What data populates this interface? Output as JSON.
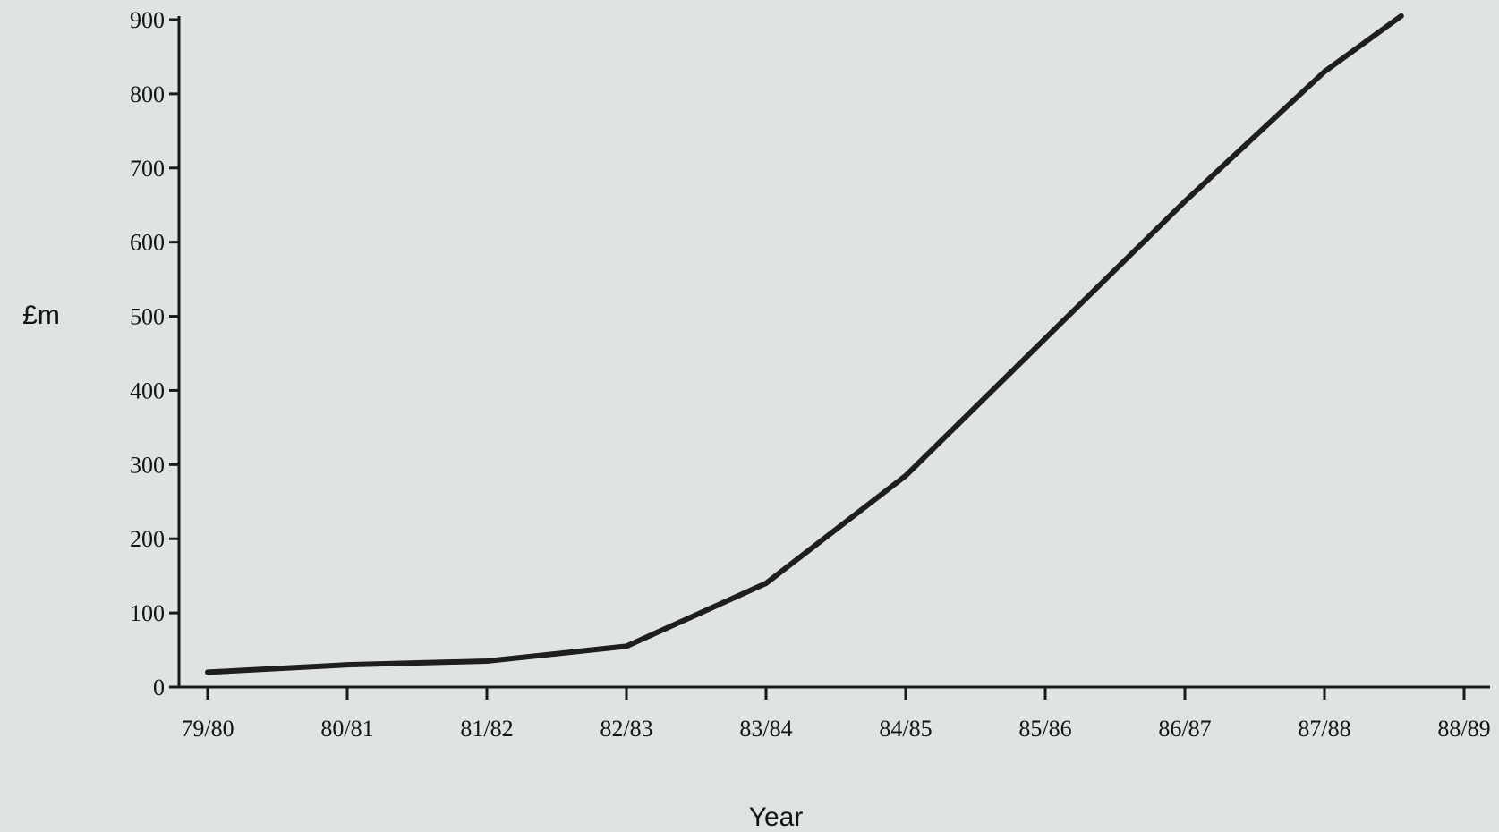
{
  "chart_data": {
    "type": "line",
    "title": "",
    "xlabel": "Year",
    "ylabel": "£m",
    "categories": [
      "79/80",
      "80/81",
      "81/82",
      "82/83",
      "83/84",
      "84/85",
      "85/86",
      "86/87",
      "87/88",
      "88/89"
    ],
    "y_ticks": [
      "0",
      "100",
      "200",
      "300",
      "400",
      "500",
      "600",
      "700",
      "800",
      "900"
    ],
    "ylim": [
      0,
      900
    ],
    "grid": false,
    "legend": "none",
    "series": [
      {
        "x": [
          0,
          1,
          2,
          3,
          4,
          5,
          6,
          7,
          8,
          8.55
        ],
        "values": [
          20,
          30,
          35,
          55,
          140,
          285,
          470,
          655,
          830,
          905
        ]
      }
    ],
    "colors": {
      "background": "#dfe3e2",
      "line": "#1e1e1e",
      "axis": "#1a1a1a"
    }
  }
}
